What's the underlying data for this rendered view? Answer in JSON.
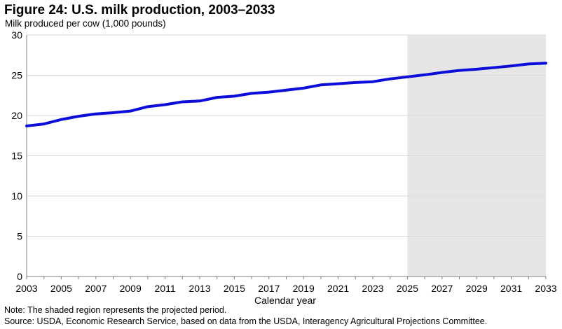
{
  "figure": {
    "title": "Figure 24: U.S. milk production, 2003–2033",
    "note": "Note: The shaded region represents the projected period.",
    "source": "Source: USDA, Economic Research Service, based on data from the USDA, Interagency Agricultural Projections Committee."
  },
  "chart_data": {
    "type": "line",
    "title": "Figure 24: U.S. milk production, 2003–2033",
    "ylabel": "Milk produced per cow (1,000 pounds)",
    "xlabel": "Calendar year",
    "xlim": [
      2003,
      2033
    ],
    "ylim": [
      0,
      30
    ],
    "yticks": [
      0,
      5,
      10,
      15,
      20,
      25,
      30
    ],
    "xticks": [
      2003,
      2005,
      2007,
      2009,
      2011,
      2013,
      2015,
      2017,
      2019,
      2021,
      2023,
      2025,
      2027,
      2029,
      2031,
      2033
    ],
    "grid": "horizontal",
    "legend": "none",
    "projected_region": {
      "start": 2025,
      "end": 2033,
      "color": "#e6e6e6"
    },
    "x": [
      2003,
      2004,
      2005,
      2006,
      2007,
      2008,
      2009,
      2010,
      2011,
      2012,
      2013,
      2014,
      2015,
      2016,
      2017,
      2018,
      2019,
      2020,
      2021,
      2022,
      2023,
      2024,
      2025,
      2026,
      2027,
      2028,
      2029,
      2030,
      2031,
      2032,
      2033
    ],
    "series": [
      {
        "color": "#0d0dd9",
        "values": [
          18.7,
          18.95,
          19.5,
          19.9,
          20.2,
          20.35,
          20.55,
          21.1,
          21.35,
          21.7,
          21.8,
          22.25,
          22.4,
          22.75,
          22.9,
          23.15,
          23.4,
          23.8,
          23.95,
          24.1,
          24.2,
          24.55,
          24.8,
          25.05,
          25.35,
          25.6,
          25.75,
          25.95,
          26.15,
          26.4,
          26.5
        ]
      }
    ]
  },
  "colors": {
    "line": "#0d0dd9",
    "grid": "#d9d9d9",
    "projected_shade": "#e6e6e6",
    "axis": "#808080"
  }
}
